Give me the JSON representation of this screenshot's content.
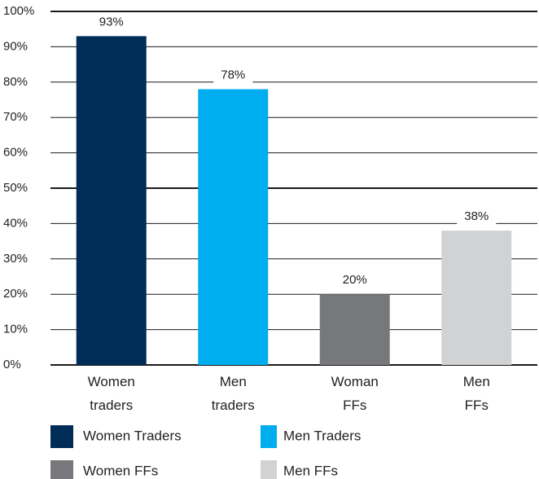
{
  "chart_data": {
    "type": "bar",
    "categories": [
      "Women\ntraders",
      "Men\ntraders",
      "Woman\nFFs",
      "Men\nFFs"
    ],
    "values": [
      93,
      78,
      20,
      38
    ],
    "value_labels": [
      "93%",
      "78%",
      "20%",
      "38%"
    ],
    "colors": [
      "#002d57",
      "#00aeef",
      "#77787b",
      "#d1d2d4"
    ],
    "legend_labels": [
      "Women Traders",
      "Men Traders",
      "Women FFs",
      "Men FFs"
    ],
    "ylim": [
      0,
      100
    ],
    "yticks": [
      {
        "value": 0,
        "label": "0%"
      },
      {
        "value": 10,
        "label": "10%"
      },
      {
        "value": 20,
        "label": "20%"
      },
      {
        "value": 30,
        "label": "30%"
      },
      {
        "value": 40,
        "label": "40%"
      },
      {
        "value": 50,
        "label": "50%"
      },
      {
        "value": 60,
        "label": "60%"
      },
      {
        "value": 70,
        "label": "70%"
      },
      {
        "value": 80,
        "label": "80%"
      },
      {
        "value": 90,
        "label": "90%"
      },
      {
        "value": 100,
        "label": "100%"
      }
    ],
    "grid": true
  }
}
